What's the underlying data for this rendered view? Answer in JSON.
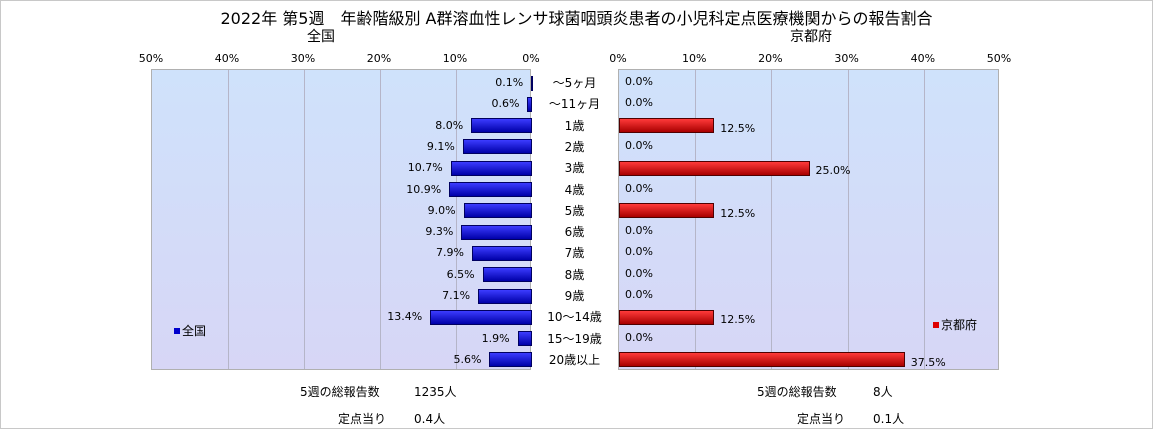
{
  "header": {
    "title": "2022年 第5週　年齢階級別 A群溶血性レンサ球菌咽頭炎患者の小児科定点医療機関からの報告割合",
    "left_subtitle": "全国",
    "right_subtitle": "京都府"
  },
  "chart_data": {
    "type": "bar",
    "orientation": "horizontal",
    "categories": [
      "～5ヶ月",
      "～11ヶ月",
      "1歳",
      "2歳",
      "3歳",
      "4歳",
      "5歳",
      "6歳",
      "7歳",
      "8歳",
      "9歳",
      "10～14歳",
      "15～19歳",
      "20歳以上"
    ],
    "series": [
      {
        "name": "全国",
        "values": [
          0.1,
          0.6,
          8.0,
          9.1,
          10.7,
          10.9,
          9.0,
          9.3,
          7.9,
          6.5,
          7.1,
          13.4,
          1.9,
          5.6
        ],
        "labels": [
          "0.1%",
          "0.6%",
          "8.0%",
          "9.1%",
          "10.7%",
          "10.9%",
          "9.0%",
          "9.3%",
          "7.9%",
          "6.5%",
          "7.1%",
          "13.4%",
          "1.9%",
          "5.6%"
        ],
        "color": "#0000cc"
      },
      {
        "name": "京都府",
        "values": [
          0.0,
          0.0,
          12.5,
          0.0,
          25.0,
          0.0,
          12.5,
          0.0,
          0.0,
          0.0,
          0.0,
          12.5,
          0.0,
          37.5
        ],
        "labels": [
          "0.0%",
          "0.0%",
          "12.5%",
          "0.0%",
          "25.0%",
          "0.0%",
          "12.5%",
          "0.0%",
          "0.0%",
          "0.0%",
          "0.0%",
          "12.5%",
          "0.0%",
          "37.5%"
        ],
        "color": "#dd0000"
      }
    ],
    "xlim": [
      0,
      50
    ],
    "ticks_left": [
      "50%",
      "40%",
      "30%",
      "20%",
      "10%",
      "0%"
    ],
    "ticks_right": [
      "0%",
      "10%",
      "20%",
      "30%",
      "40%",
      "50%"
    ],
    "legend_left": "全国",
    "legend_right": "京都府",
    "grid": true
  },
  "footer": {
    "left": {
      "total_label": "5週の総報告数",
      "total_value": "1235人",
      "per_label": "定点当り",
      "per_value": "0.4人"
    },
    "right": {
      "total_label": "5週の総報告数",
      "total_value": "8人",
      "per_label": "定点当り",
      "per_value": "0.1人"
    }
  }
}
